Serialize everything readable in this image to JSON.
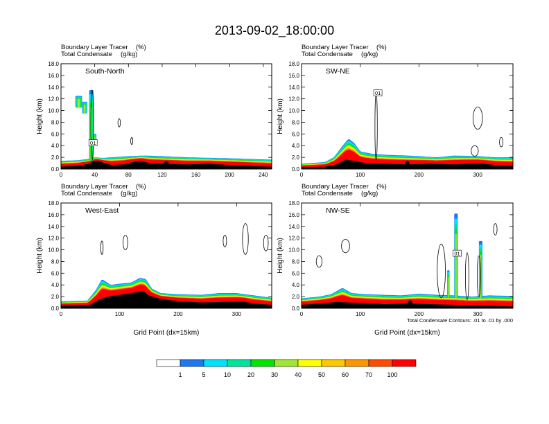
{
  "figure": {
    "title": "2013-09-02_18:00:00",
    "subtitle_left": "Boundary Layer Tracer",
    "subtitle_left_unit": "(%)",
    "subtitle_left2": "Total Condensate",
    "subtitle_left2_unit": "(g/kg)",
    "xlabel": "Grid Point (dx=15km)",
    "ylabel": "Height (km)",
    "contour_note": "Total Condensate Contours: .01 to .01 by .000",
    "contour_label": "01"
  },
  "colors": {
    "fill_levels": [
      "#ffffff",
      "#1e78f0",
      "#00e1ff",
      "#00e39b",
      "#00e600",
      "#a0e632",
      "#ffff00",
      "#ffc800",
      "#ff9600",
      "#ff4b00",
      "#ff0000"
    ],
    "terrain": "#000000",
    "contour": "#000000"
  },
  "legend": {
    "labels": [
      "1",
      "5",
      "10",
      "20",
      "30",
      "40",
      "50",
      "60",
      "70",
      "100"
    ]
  },
  "chart_data": [
    {
      "type": "heatmap",
      "name": "South-North",
      "xlim": [
        0,
        250
      ],
      "ylim": [
        0,
        18
      ],
      "xticks": [
        0,
        40,
        80,
        120,
        160,
        200,
        240
      ],
      "xtick_labels": [
        "0",
        "40",
        "80",
        "120",
        "160",
        "200",
        "240"
      ],
      "yticks": [
        0,
        2,
        4,
        6,
        8,
        10,
        12,
        14,
        16,
        18
      ],
      "ytick_labels": [
        "0.0",
        "2.0",
        "4.0",
        "6.0",
        "8.0",
        "10.0",
        "12.0",
        "14.0",
        "16.0",
        "18.0"
      ],
      "show_xlabel": false,
      "terrain": [
        [
          0,
          0.4
        ],
        [
          20,
          0.6
        ],
        [
          34,
          0.9
        ],
        [
          38,
          1.3
        ],
        [
          44,
          1.4
        ],
        [
          52,
          1.0
        ],
        [
          60,
          0.7
        ],
        [
          75,
          0.8
        ],
        [
          85,
          1.2
        ],
        [
          95,
          1.4
        ],
        [
          105,
          1.0
        ],
        [
          125,
          0.9
        ],
        [
          150,
          0.8
        ],
        [
          175,
          0.9
        ],
        [
          200,
          0.7
        ],
        [
          230,
          0.5
        ],
        [
          250,
          0.4
        ]
      ],
      "pbl_top": [
        [
          0,
          1.4
        ],
        [
          20,
          1.5
        ],
        [
          36,
          1.8
        ],
        [
          40,
          2.0
        ],
        [
          50,
          1.9
        ],
        [
          60,
          2.0
        ],
        [
          80,
          2.2
        ],
        [
          100,
          2.3
        ],
        [
          120,
          2.2
        ],
        [
          150,
          2.0
        ],
        [
          180,
          1.9
        ],
        [
          210,
          1.8
        ],
        [
          250,
          1.6
        ]
      ],
      "plumes": [
        {
          "x": 36,
          "w": 2.5,
          "top": 13.5
        },
        {
          "x": 21,
          "w": 4,
          "top": 12.5,
          "bottom": 10.5
        },
        {
          "x": 28,
          "w": 3,
          "top": 11.5,
          "bottom": 9.5
        },
        {
          "x": 40,
          "w": 2,
          "top": 6,
          "bottom": 4
        }
      ],
      "contours": [
        {
          "x": 37,
          "w": 1.6,
          "y0": 1.5,
          "y1": 13.5
        },
        {
          "x": 69,
          "w": 1.5,
          "y0": 7.2,
          "y1": 8.6
        },
        {
          "x": 84,
          "w": 1.2,
          "y0": 4.2,
          "y1": 5.4
        }
      ],
      "label_x": 38,
      "label_y": 4.5,
      "marker": {
        "x": 125,
        "y": 1.0
      }
    },
    {
      "type": "heatmap",
      "name": "SW-NE",
      "xlim": [
        0,
        360
      ],
      "ylim": [
        0,
        18
      ],
      "xticks": [
        0,
        100,
        200,
        300
      ],
      "xtick_labels": [
        "0",
        "100",
        "200",
        "300"
      ],
      "yticks": [
        0,
        2,
        4,
        6,
        8,
        10,
        12,
        14,
        16,
        18
      ],
      "ytick_labels": [
        "0.0",
        "2.0",
        "4.0",
        "6.0",
        "8.0",
        "10.0",
        "12.0",
        "14.0",
        "16.0",
        "18.0"
      ],
      "show_xlabel": false,
      "terrain": [
        [
          0,
          0.3
        ],
        [
          40,
          0.4
        ],
        [
          60,
          0.8
        ],
        [
          75,
          1.6
        ],
        [
          90,
          1.4
        ],
        [
          110,
          1.0
        ],
        [
          140,
          0.9
        ],
        [
          180,
          0.8
        ],
        [
          220,
          0.9
        ],
        [
          260,
          0.8
        ],
        [
          300,
          1.0
        ],
        [
          330,
          0.7
        ],
        [
          360,
          0.5
        ]
      ],
      "pbl_top": [
        [
          0,
          0.9
        ],
        [
          40,
          1.2
        ],
        [
          55,
          2.0
        ],
        [
          70,
          4.0
        ],
        [
          80,
          5.2
        ],
        [
          90,
          4.4
        ],
        [
          100,
          3.0
        ],
        [
          120,
          2.6
        ],
        [
          150,
          2.4
        ],
        [
          180,
          2.3
        ],
        [
          200,
          2.2
        ],
        [
          230,
          2.0
        ],
        [
          260,
          2.3
        ],
        [
          300,
          2.2
        ],
        [
          330,
          2.0
        ],
        [
          360,
          2.0
        ]
      ],
      "plumes": [],
      "contours": [
        {
          "x": 127,
          "w": 2,
          "y0": 1.5,
          "y1": 13.0
        },
        {
          "x": 300,
          "w": 8,
          "y0": 6.8,
          "y1": 10.6
        },
        {
          "x": 295,
          "w": 6,
          "y0": 2.2,
          "y1": 4.0
        },
        {
          "x": 340,
          "w": 3,
          "y0": 3.8,
          "y1": 5.4
        }
      ],
      "label_x": 130,
      "label_y": 13.0,
      "marker": {
        "x": 180,
        "y": 1.0
      }
    },
    {
      "type": "heatmap",
      "name": "West-East",
      "xlim": [
        0,
        360
      ],
      "ylim": [
        0,
        18
      ],
      "xticks": [
        0,
        100,
        200,
        300
      ],
      "xtick_labels": [
        "0",
        "100",
        "200",
        "300"
      ],
      "yticks": [
        0,
        2,
        4,
        6,
        8,
        10,
        12,
        14,
        16,
        18
      ],
      "ytick_labels": [
        "0.0",
        "2.0",
        "4.0",
        "6.0",
        "8.0",
        "10.0",
        "12.0",
        "14.0",
        "16.0",
        "18.0"
      ],
      "show_xlabel": true,
      "terrain": [
        [
          0,
          0.4
        ],
        [
          50,
          0.6
        ],
        [
          65,
          1.5
        ],
        [
          80,
          2.0
        ],
        [
          100,
          2.3
        ],
        [
          120,
          2.6
        ],
        [
          140,
          3.0
        ],
        [
          150,
          2.2
        ],
        [
          170,
          1.6
        ],
        [
          200,
          1.2
        ],
        [
          240,
          1.0
        ],
        [
          280,
          1.1
        ],
        [
          310,
          1.2
        ],
        [
          330,
          0.8
        ],
        [
          360,
          0.6
        ]
      ],
      "pbl_top": [
        [
          0,
          1.2
        ],
        [
          45,
          1.3
        ],
        [
          60,
          3.2
        ],
        [
          70,
          5.0
        ],
        [
          85,
          4.0
        ],
        [
          100,
          4.2
        ],
        [
          120,
          4.4
        ],
        [
          135,
          5.2
        ],
        [
          145,
          5.0
        ],
        [
          155,
          3.4
        ],
        [
          170,
          2.6
        ],
        [
          200,
          2.4
        ],
        [
          240,
          2.3
        ],
        [
          270,
          2.6
        ],
        [
          300,
          2.6
        ],
        [
          330,
          2.2
        ],
        [
          360,
          1.8
        ]
      ],
      "plumes": [],
      "contours": [
        {
          "x": 70,
          "w": 2,
          "y0": 9.2,
          "y1": 11.5
        },
        {
          "x": 110,
          "w": 4,
          "y0": 10.0,
          "y1": 12.5
        },
        {
          "x": 280,
          "w": 3,
          "y0": 10.5,
          "y1": 12.5
        },
        {
          "x": 315,
          "w": 5,
          "y0": 9.2,
          "y1": 14.5
        },
        {
          "x": 350,
          "w": 4,
          "y0": 9.8,
          "y1": 12.5
        }
      ],
      "label_x": 0,
      "label_y": 0,
      "marker": {
        "x": 195,
        "y": 1.0
      }
    },
    {
      "type": "heatmap",
      "name": "NW-SE",
      "xlim": [
        0,
        360
      ],
      "ylim": [
        0,
        18
      ],
      "xticks": [
        0,
        100,
        200,
        300
      ],
      "xtick_labels": [
        "0",
        "100",
        "200",
        "300"
      ],
      "yticks": [
        0,
        2,
        4,
        6,
        8,
        10,
        12,
        14,
        16,
        18
      ],
      "ytick_labels": [
        "0.0",
        "2.0",
        "4.0",
        "6.0",
        "8.0",
        "10.0",
        "12.0",
        "14.0",
        "16.0",
        "18.0"
      ],
      "show_xlabel": true,
      "terrain": [
        [
          0,
          0.6
        ],
        [
          30,
          0.8
        ],
        [
          60,
          1.1
        ],
        [
          80,
          1.0
        ],
        [
          110,
          0.9
        ],
        [
          140,
          0.7
        ],
        [
          180,
          0.8
        ],
        [
          220,
          0.7
        ],
        [
          260,
          0.6
        ],
        [
          300,
          0.5
        ],
        [
          330,
          0.4
        ],
        [
          360,
          0.3
        ]
      ],
      "pbl_top": [
        [
          0,
          1.7
        ],
        [
          30,
          2.0
        ],
        [
          50,
          2.4
        ],
        [
          70,
          3.5
        ],
        [
          85,
          2.6
        ],
        [
          110,
          2.4
        ],
        [
          140,
          2.3
        ],
        [
          170,
          2.2
        ],
        [
          200,
          2.5
        ],
        [
          230,
          2.3
        ],
        [
          260,
          2.2
        ],
        [
          290,
          2.0
        ],
        [
          320,
          2.2
        ],
        [
          360,
          2.1
        ]
      ],
      "plumes": [
        {
          "x": 263,
          "w": 3,
          "top": 16.2
        },
        {
          "x": 305,
          "w": 3,
          "top": 11.5
        },
        {
          "x": 250,
          "w": 2,
          "top": 6.5
        }
      ],
      "contours": [
        {
          "x": 238,
          "w": 7,
          "y0": 1.8,
          "y1": 11.0
        },
        {
          "x": 282,
          "w": 3,
          "y0": 1.5,
          "y1": 9.5
        },
        {
          "x": 302,
          "w": 3,
          "y0": 2.0,
          "y1": 9.0
        },
        {
          "x": 75,
          "w": 7,
          "y0": 9.5,
          "y1": 11.8
        },
        {
          "x": 30,
          "w": 5,
          "y0": 7.0,
          "y1": 9.0
        },
        {
          "x": 330,
          "w": 3,
          "y0": 12.5,
          "y1": 14.5
        }
      ],
      "label_x": 265,
      "label_y": 9.4,
      "marker": {
        "x": 185,
        "y": 1.0
      }
    }
  ]
}
